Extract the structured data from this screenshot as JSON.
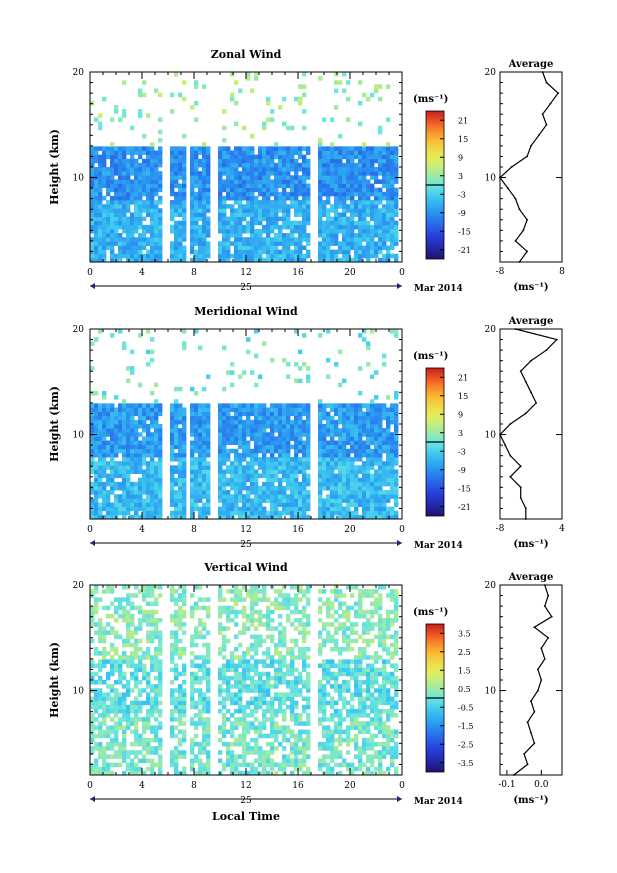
{
  "chart_data": [
    {
      "type": "heatmap",
      "title": "Zonal Wind",
      "xlabel": "",
      "ylabel": "Height (km)",
      "xlim": [
        0,
        24
      ],
      "ylim": [
        2,
        20
      ],
      "x_ticks": [
        "0",
        "4",
        "8",
        "12",
        "16",
        "20",
        "0"
      ],
      "y_ticks": [
        "10",
        "20"
      ],
      "date_label": "25",
      "month_label": "Mar 2014",
      "colorbar": {
        "unit": "(ms⁻¹)",
        "range": [
          -24,
          24
        ],
        "ticks": [
          "21",
          "15",
          "9",
          "3",
          "-3",
          "-9",
          "-15",
          "-21"
        ]
      },
      "field_summary": {
        "lower_mean": -6,
        "mid_mean": -9,
        "upper_mean": 3
      },
      "data_gaps_hours": [
        [
          5.5,
          6.1
        ],
        [
          7.4,
          7.6
        ],
        [
          9.2,
          9.9
        ],
        [
          16.9,
          17.4
        ],
        [
          23.6,
          24
        ]
      ],
      "profile": {
        "title": "Average",
        "xlim": [
          -8,
          8
        ],
        "x_ticks": [
          "-8",
          "8"
        ],
        "y_ticks": [
          "10",
          "20"
        ],
        "xlabel": "(ms⁻¹)",
        "height": [
          2,
          3,
          4,
          5,
          6,
          7,
          8,
          9,
          10,
          11,
          12,
          13,
          14,
          15,
          16,
          17,
          18,
          19,
          20
        ],
        "value": [
          -3,
          -1,
          -4,
          -2,
          -1,
          -3,
          -4,
          -6,
          -8,
          -5,
          -1,
          0,
          2,
          4,
          3,
          5,
          7,
          4,
          3
        ]
      }
    },
    {
      "type": "heatmap",
      "title": "Meridional Wind",
      "xlabel": "",
      "ylabel": "Height (km)",
      "xlim": [
        0,
        24
      ],
      "ylim": [
        2,
        20
      ],
      "x_ticks": [
        "0",
        "4",
        "8",
        "12",
        "16",
        "20",
        "0"
      ],
      "y_ticks": [
        "10",
        "20"
      ],
      "date_label": "25",
      "month_label": "Mar 2014",
      "colorbar": {
        "unit": "(ms⁻¹)",
        "range": [
          -24,
          24
        ],
        "ticks": [
          "21",
          "15",
          "9",
          "3",
          "-3",
          "-9",
          "-15",
          "-21"
        ]
      },
      "field_summary": {
        "lower_mean": -5,
        "mid_mean": -8,
        "upper_mean": 0
      },
      "data_gaps_hours": [
        [
          5.5,
          6.1
        ],
        [
          7.4,
          7.6
        ],
        [
          9.2,
          9.9
        ],
        [
          16.9,
          17.4
        ],
        [
          23.6,
          24
        ]
      ],
      "profile": {
        "title": "Average",
        "xlim": [
          -8,
          4
        ],
        "x_ticks": [
          "-8",
          "4"
        ],
        "y_ticks": [
          "10",
          "20"
        ],
        "xlabel": "(ms⁻¹)",
        "height": [
          2,
          3,
          4,
          5,
          6,
          7,
          8,
          9,
          10,
          11,
          12,
          13,
          14,
          15,
          16,
          17,
          18,
          19,
          20
        ],
        "value": [
          -3,
          -3,
          -4,
          -4,
          -6,
          -4,
          -6,
          -7,
          -8,
          -6,
          -3,
          -1,
          -2,
          -3,
          -4,
          -2,
          1,
          3,
          -5
        ]
      }
    },
    {
      "type": "heatmap",
      "title": "Vertical Wind",
      "xlabel": "Local Time",
      "ylabel": "Height (km)",
      "xlim": [
        0,
        24
      ],
      "ylim": [
        2,
        20
      ],
      "x_ticks": [
        "0",
        "4",
        "8",
        "12",
        "16",
        "20",
        "0"
      ],
      "y_ticks": [
        "10",
        "20"
      ],
      "date_label": "25",
      "month_label": "Mar 2014",
      "colorbar": {
        "unit": "(ms⁻¹)",
        "range": [
          -4,
          4
        ],
        "ticks": [
          "3.5",
          "2.5",
          "1.5",
          "0.5",
          "-0.5",
          "-1.5",
          "-2.5",
          "-3.5"
        ]
      },
      "field_summary": {
        "lower_mean": 0.1,
        "mid_mean": -0.2,
        "upper_mean": 0.3
      },
      "data_gaps_hours": [
        [
          5.5,
          6.1
        ],
        [
          7.4,
          7.6
        ],
        [
          9.2,
          9.9
        ],
        [
          16.9,
          17.4
        ],
        [
          23.6,
          24
        ]
      ],
      "profile": {
        "title": "Average",
        "xlim": [
          -0.12,
          0.06
        ],
        "x_ticks": [
          "-0.1",
          "0.0"
        ],
        "y_ticks": [
          "10",
          "20"
        ],
        "xlabel": "(ms⁻¹)",
        "height": [
          2,
          3,
          4,
          5,
          6,
          7,
          8,
          9,
          10,
          11,
          12,
          13,
          14,
          15,
          16,
          17,
          18,
          19,
          20
        ],
        "value": [
          -0.08,
          -0.04,
          -0.05,
          -0.02,
          -0.03,
          -0.04,
          -0.02,
          -0.03,
          -0.01,
          0.0,
          -0.01,
          0.01,
          0.0,
          0.02,
          -0.02,
          0.03,
          0.01,
          0.02,
          0.01
        ]
      }
    }
  ]
}
